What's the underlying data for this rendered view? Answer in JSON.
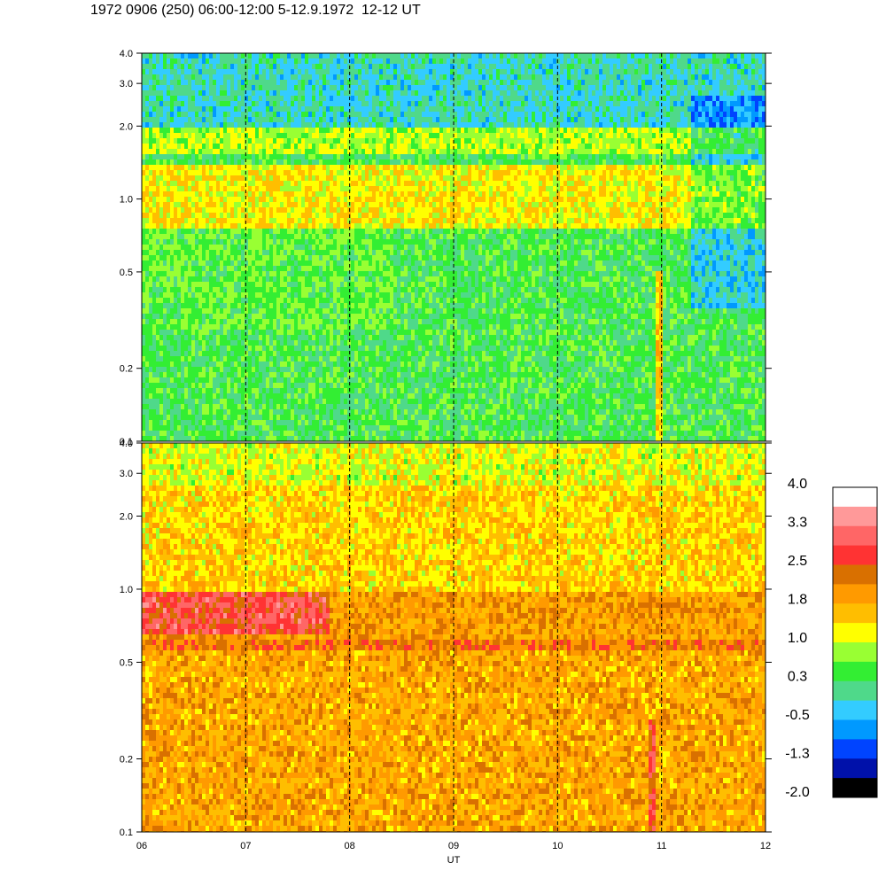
{
  "title": "1972 0906 (250) 06:00-12:00 5-12.9.1972  12-12 UT",
  "chart_data": [
    {
      "type": "heatmap",
      "panel": "upper",
      "xlabel": "",
      "ylabel": "",
      "x_ticks": [
        "06",
        "07",
        "08",
        "09",
        "10",
        "11",
        "12"
      ],
      "y_scale": "log",
      "ylim": [
        0.1,
        4.0
      ],
      "y_ticks": [
        "0.1",
        "0.2",
        "0.5",
        "1.0",
        "2.0",
        "3.0",
        "4.0"
      ],
      "grid": "dashed vertical lines at each hour",
      "dominant_level": "0.3 to 1.0 (green/yellow), peak band near 0.7-0.9 reaching 1.8"
    },
    {
      "type": "heatmap",
      "panel": "lower",
      "xlabel": "UT",
      "ylabel": "",
      "x_ticks": [
        "06",
        "07",
        "08",
        "09",
        "10",
        "11",
        "12"
      ],
      "y_scale": "log",
      "ylim": [
        0.1,
        4.0
      ],
      "y_ticks": [
        "0.1",
        "0.2",
        "0.5",
        "1.0",
        "2.0",
        "3.0",
        "4.0"
      ],
      "grid": "dashed vertical lines at each hour",
      "dominant_level": "1.0 to 2.5 (yellow/orange), red band near 0.6-0.8 at 06-08 UT"
    }
  ],
  "colorbar": {
    "labels": [
      "4.0",
      "3.3",
      "2.5",
      "1.8",
      "1.0",
      "0.3",
      "-0.5",
      "-1.3",
      "-2.0"
    ],
    "colors": [
      "#ffffff",
      "#ff9999",
      "#ff6666",
      "#ff3333",
      "#d97000",
      "#ff9a00",
      "#ffbe00",
      "#ffff00",
      "#99ff33",
      "#33ee33",
      "#4fd98a",
      "#33ccff",
      "#0099ff",
      "#0044ff",
      "#0011aa",
      "#000000"
    ]
  }
}
